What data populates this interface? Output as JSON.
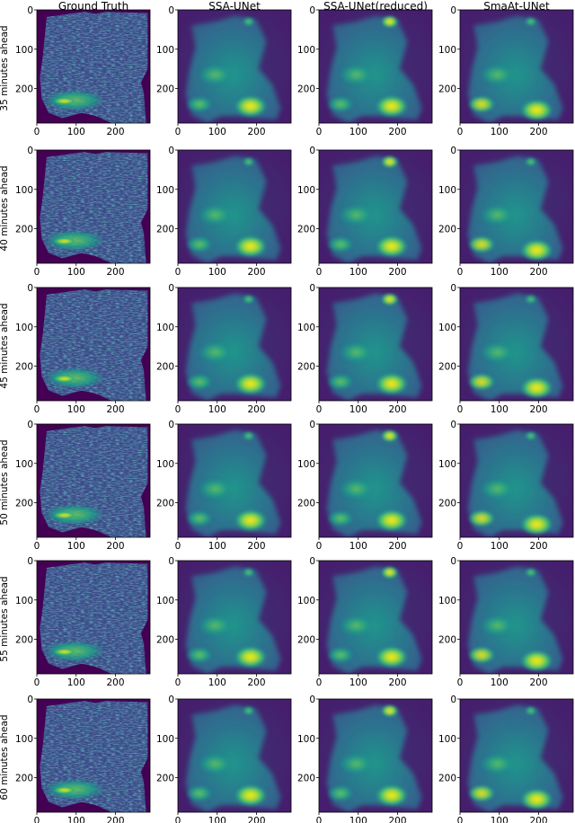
{
  "figure": {
    "columns": [
      "Ground Truth",
      "SSA-UNet",
      "SSA-UNet(reduced)",
      "SmaAt-UNet"
    ],
    "rows": [
      "35 minutes ahead",
      "40 minutes ahead",
      "45 minutes ahead",
      "50 minutes ahead",
      "55 minutes ahead",
      "60 minutes ahead"
    ]
  },
  "chart_data": {
    "type": "heatmap",
    "layout": "grid of image panels, 6 rows x 4 columns",
    "colormap": "viridis",
    "x_ticks": [
      0,
      100,
      200
    ],
    "y_ticks": [
      0,
      100,
      200
    ],
    "xlim": [
      0,
      288
    ],
    "ylim": [
      288,
      0
    ],
    "grid": false,
    "legend": "none",
    "columns": [
      "Ground Truth",
      "SSA-UNet",
      "SSA-UNet(reduced)",
      "SmaAt-UNet"
    ],
    "rows": [
      "35 minutes ahead",
      "40 minutes ahead",
      "45 minutes ahead",
      "50 minutes ahead",
      "55 minutes ahead",
      "60 minutes ahead"
    ]
  },
  "colors": {
    "background": "#440154",
    "viridis_low": "#440154",
    "viridis_mid": "#21908d",
    "viridis_high": "#fde725"
  }
}
